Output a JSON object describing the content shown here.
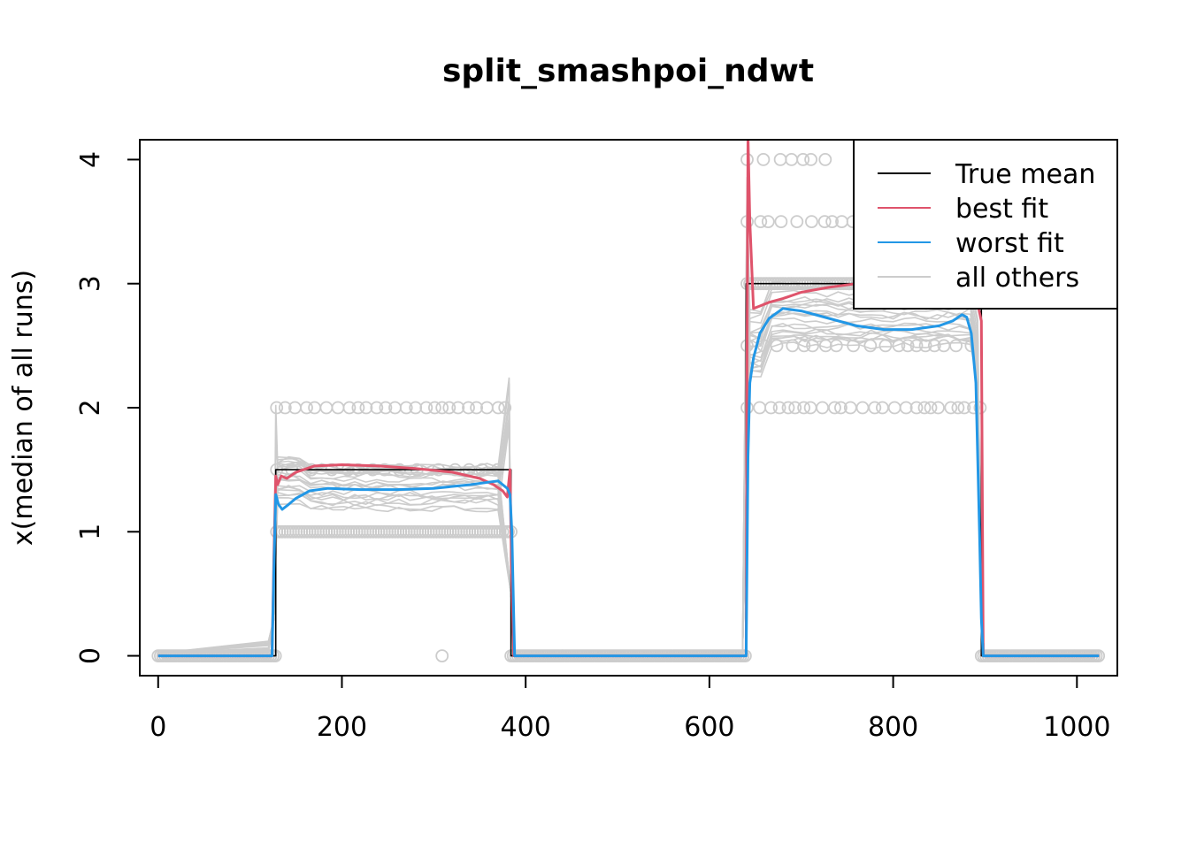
{
  "chart_data": {
    "type": "line",
    "title": "split_smashpoi_ndwt",
    "xlabel": "",
    "ylabel": "x(median of all runs)",
    "xlim": [
      -20,
      1044
    ],
    "ylim": [
      -0.16,
      4.16
    ],
    "x_ticks": [
      0,
      200,
      400,
      600,
      800,
      1000
    ],
    "y_ticks": [
      0,
      1,
      2,
      3,
      4
    ],
    "legend": {
      "position": "top-right",
      "entries": [
        {
          "label": "True mean",
          "color": "#000000"
        },
        {
          "label": "best fit",
          "color": "#DF536B"
        },
        {
          "label": "worst fit",
          "color": "#2297E6"
        },
        {
          "label": "all others",
          "color": "#CCCCCC"
        }
      ]
    },
    "series": [
      {
        "name": "True mean",
        "color": "#000000",
        "x": [
          0,
          128,
          128,
          384,
          384,
          640,
          640,
          896,
          896,
          1024
        ],
        "y": [
          0,
          0,
          1.5,
          1.5,
          0,
          0,
          3,
          3,
          0,
          0
        ]
      },
      {
        "name": "best fit",
        "color": "#DF536B",
        "x": [
          0,
          124,
          126,
          128,
          130,
          134,
          140,
          150,
          170,
          200,
          240,
          280,
          320,
          350,
          365,
          375,
          380,
          383,
          385,
          387,
          640,
          641,
          642,
          644,
          648,
          655,
          665,
          680,
          700,
          730,
          760,
          790,
          820,
          850,
          870,
          885,
          893,
          896,
          898,
          1024
        ],
        "y": [
          0,
          0,
          0.8,
          1.45,
          1.38,
          1.45,
          1.43,
          1.48,
          1.53,
          1.54,
          1.53,
          1.51,
          1.48,
          1.43,
          1.38,
          1.33,
          1.28,
          1.5,
          0.6,
          0,
          0,
          2.5,
          4.2,
          3.5,
          2.8,
          2.82,
          2.85,
          2.88,
          2.93,
          2.97,
          3.0,
          3.0,
          2.97,
          2.93,
          2.9,
          2.85,
          2.8,
          2.7,
          0,
          0
        ]
      },
      {
        "name": "worst fit",
        "color": "#2297E6",
        "x": [
          0,
          124,
          126,
          128,
          131,
          135,
          142,
          150,
          165,
          185,
          220,
          260,
          300,
          340,
          360,
          370,
          375,
          380,
          383,
          385,
          388,
          640,
          642,
          644,
          648,
          655,
          665,
          680,
          700,
          730,
          760,
          790,
          820,
          850,
          865,
          875,
          880,
          885,
          890,
          894,
          896,
          898,
          1024
        ],
        "y": [
          0,
          0,
          0.7,
          1.3,
          1.22,
          1.18,
          1.22,
          1.27,
          1.33,
          1.35,
          1.34,
          1.34,
          1.35,
          1.38,
          1.4,
          1.41,
          1.38,
          1.35,
          1.3,
          1.0,
          0,
          0,
          1.6,
          2.2,
          2.4,
          2.6,
          2.72,
          2.8,
          2.78,
          2.72,
          2.66,
          2.63,
          2.63,
          2.66,
          2.7,
          2.75,
          2.73,
          2.6,
          2.2,
          1.0,
          0.3,
          0,
          0
        ]
      }
    ]
  }
}
